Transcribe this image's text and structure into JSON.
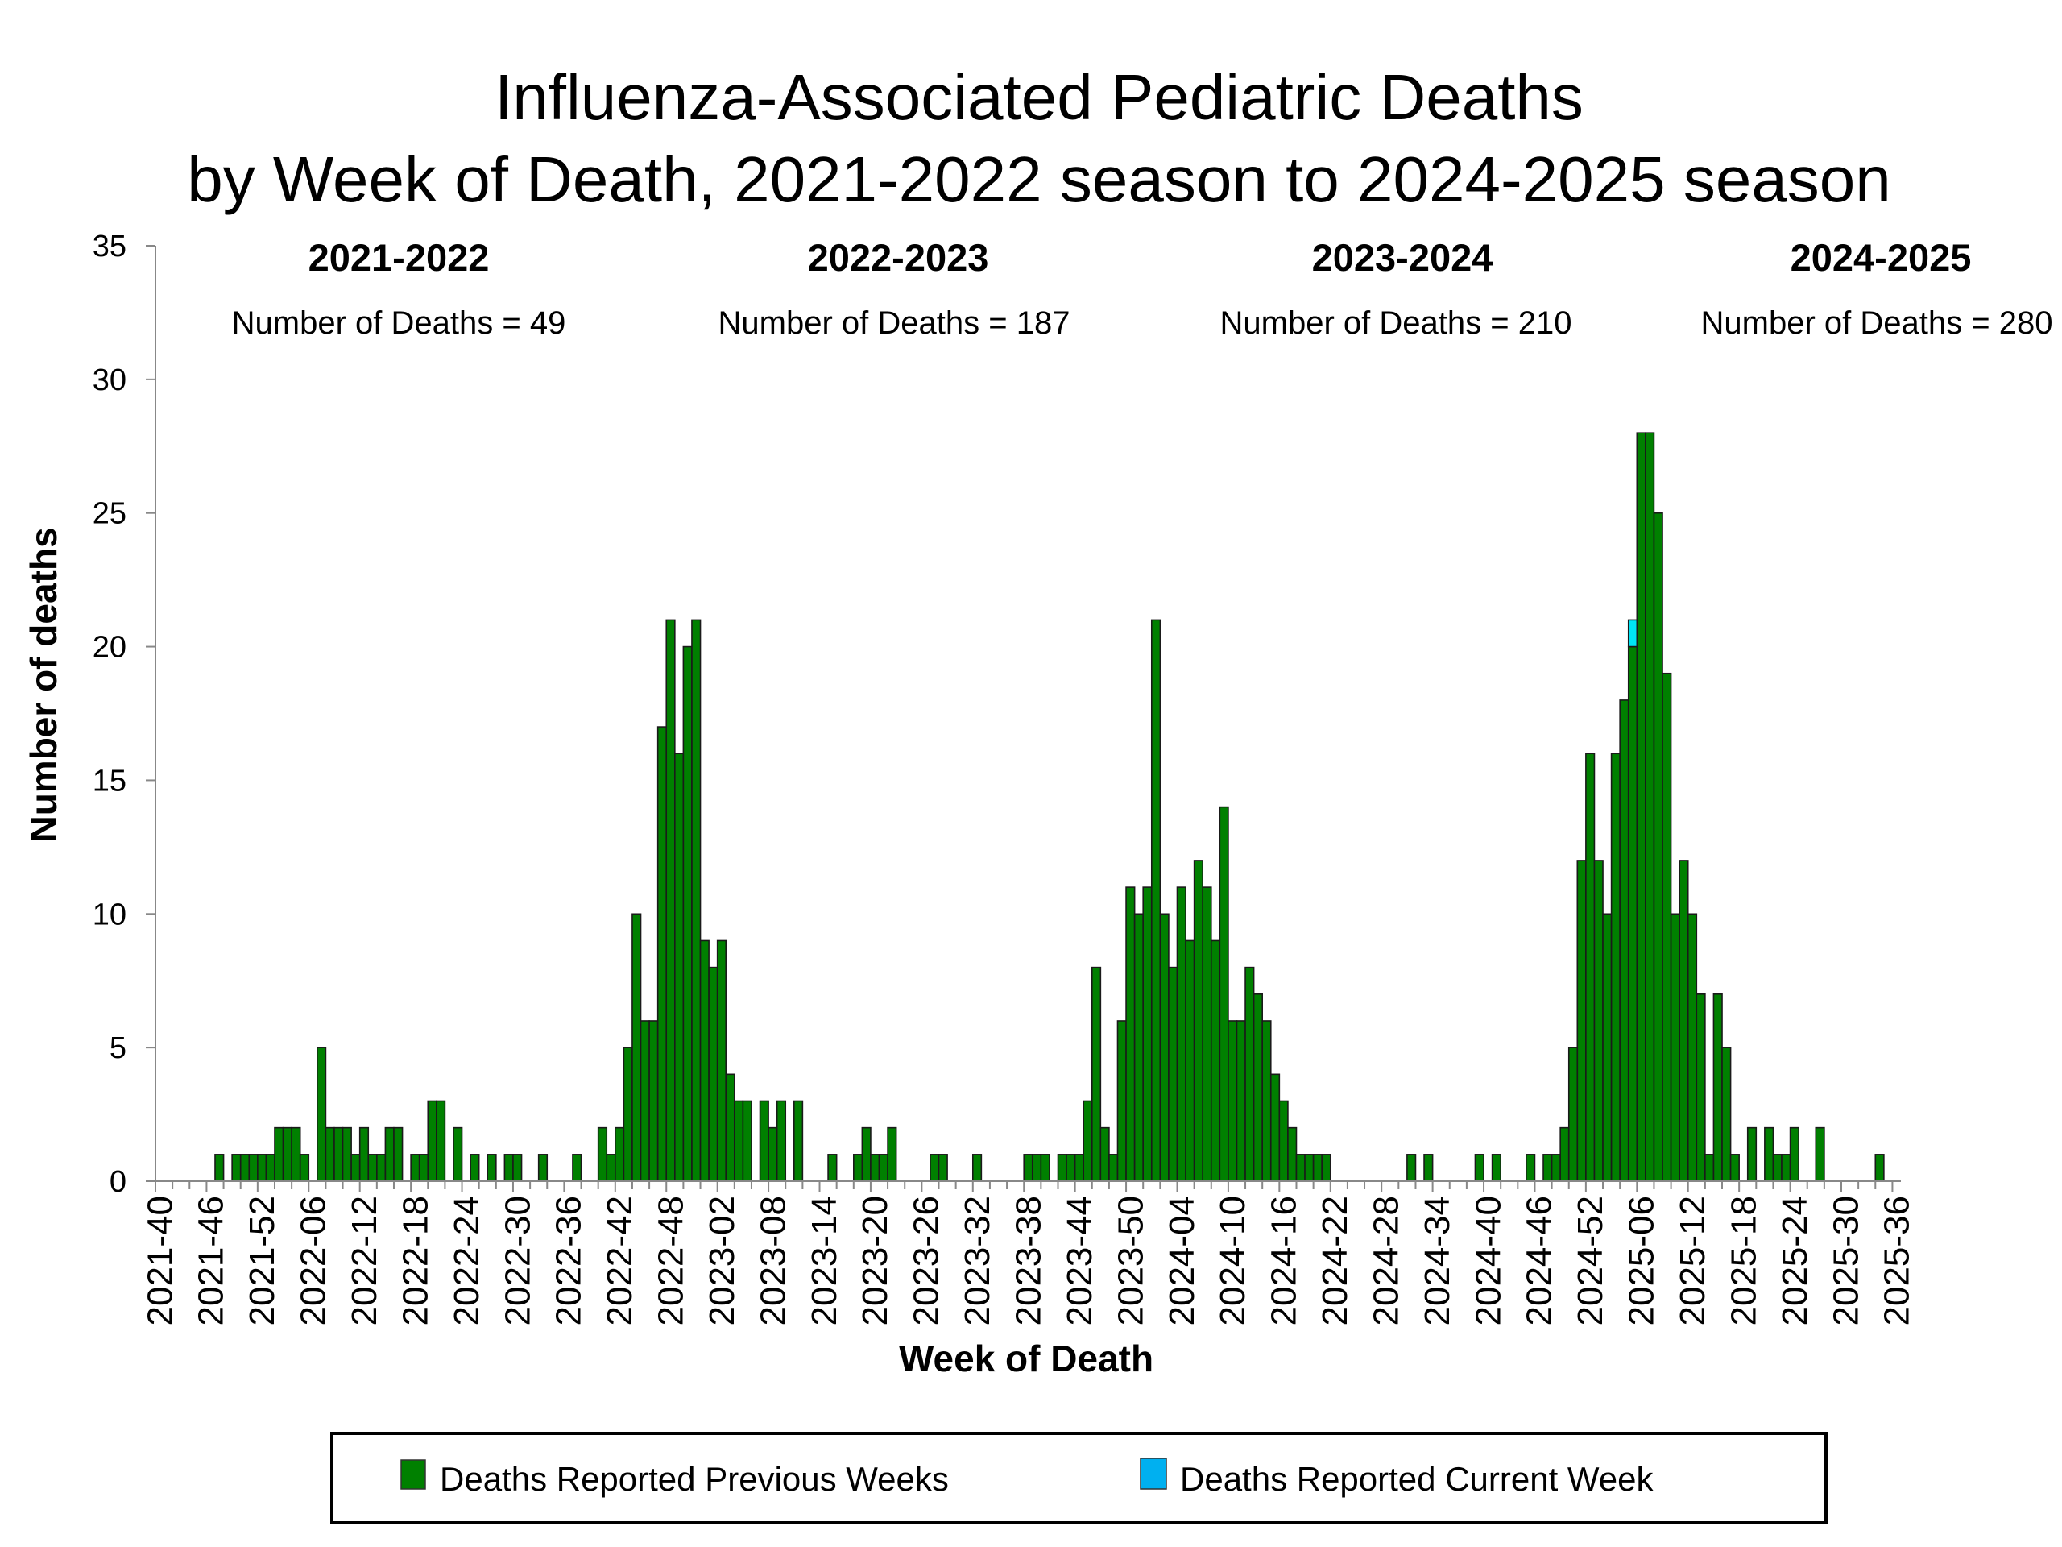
{
  "chart_data": {
    "type": "bar",
    "title_line1": "Influenza-Associated Pediatric Deaths",
    "title_line2": "by Week of Death, 2021-2022 season to 2024-2025 season",
    "xlabel": "Week of Death",
    "ylabel": "Number of deaths",
    "ylim": [
      0,
      35
    ],
    "yticks": [
      "0",
      "5",
      "10",
      "15",
      "20",
      "25",
      "30",
      "35"
    ],
    "grid": false,
    "legend_position": "bottom",
    "x_first_week": "2021-40",
    "x_last_week": "2025-36",
    "xtick_labels": [
      "2021-40",
      "2021-46",
      "2021-52",
      "2022-06",
      "2022-12",
      "2022-18",
      "2022-24",
      "2022-30",
      "2022-36",
      "2022-42",
      "2022-48",
      "2023-02",
      "2023-08",
      "2023-14",
      "2023-20",
      "2023-26",
      "2023-32",
      "2023-38",
      "2023-44",
      "2023-50",
      "2024-04",
      "2024-10",
      "2024-16",
      "2024-22",
      "2024-28",
      "2024-34",
      "2024-40",
      "2024-46",
      "2024-52",
      "2025-06",
      "2025-12",
      "2025-18",
      "2025-24",
      "2025-30",
      "2025-36"
    ],
    "series": [
      {
        "name": "Deaths Reported Previous Weeks",
        "color": "#008000",
        "values": [
          0,
          0,
          0,
          0,
          0,
          0,
          0,
          1,
          0,
          1,
          1,
          1,
          1,
          1,
          2,
          2,
          2,
          1,
          0,
          5,
          2,
          2,
          2,
          1,
          2,
          1,
          1,
          2,
          2,
          0,
          1,
          1,
          3,
          3,
          0,
          2,
          0,
          1,
          0,
          1,
          0,
          1,
          1,
          0,
          0,
          1,
          0,
          0,
          0,
          1,
          0,
          0,
          2,
          1,
          2,
          5,
          10,
          6,
          6,
          17,
          21,
          16,
          20,
          21,
          9,
          8,
          9,
          4,
          3,
          3,
          0,
          3,
          2,
          3,
          0,
          3,
          0,
          0,
          0,
          1,
          0,
          0,
          1,
          2,
          1,
          1,
          2,
          0,
          0,
          0,
          0,
          1,
          1,
          0,
          0,
          0,
          1,
          0,
          0,
          0,
          0,
          0,
          1,
          1,
          1,
          0,
          1,
          1,
          1,
          3,
          8,
          2,
          1,
          6,
          11,
          10,
          11,
          21,
          10,
          8,
          11,
          9,
          12,
          11,
          9,
          14,
          6,
          6,
          8,
          7,
          6,
          4,
          3,
          2,
          1,
          1,
          1,
          1,
          0,
          0,
          0,
          0,
          0,
          0,
          0,
          0,
          0,
          1,
          0,
          1,
          0,
          0,
          0,
          0,
          0,
          1,
          0,
          1,
          0,
          0,
          0,
          1,
          0,
          1,
          1,
          2,
          5,
          12,
          16,
          12,
          10,
          16,
          18,
          20,
          28,
          28,
          25,
          19,
          10,
          12,
          10,
          7,
          1,
          7,
          5,
          1,
          0,
          2,
          0,
          2,
          1,
          1,
          2,
          0,
          0,
          2,
          0,
          0,
          0,
          0,
          0,
          0,
          1,
          0,
          0
        ]
      },
      {
        "name": "Deaths Reported Current Week",
        "color": "#00b0f0",
        "bar_color": "#00e5f5",
        "points": [
          {
            "week": "2025-05",
            "value": 1
          }
        ]
      }
    ],
    "seasons": [
      {
        "label": "2021-2022",
        "count_text": "Number of Deaths = 49"
      },
      {
        "label": "2022-2023",
        "count_text": "Number of Deaths = 187"
      },
      {
        "label": "2023-2024",
        "count_text": "Number of Deaths = 210"
      },
      {
        "label": "2024-2025",
        "count_text": "Number of Deaths = 280"
      }
    ]
  }
}
